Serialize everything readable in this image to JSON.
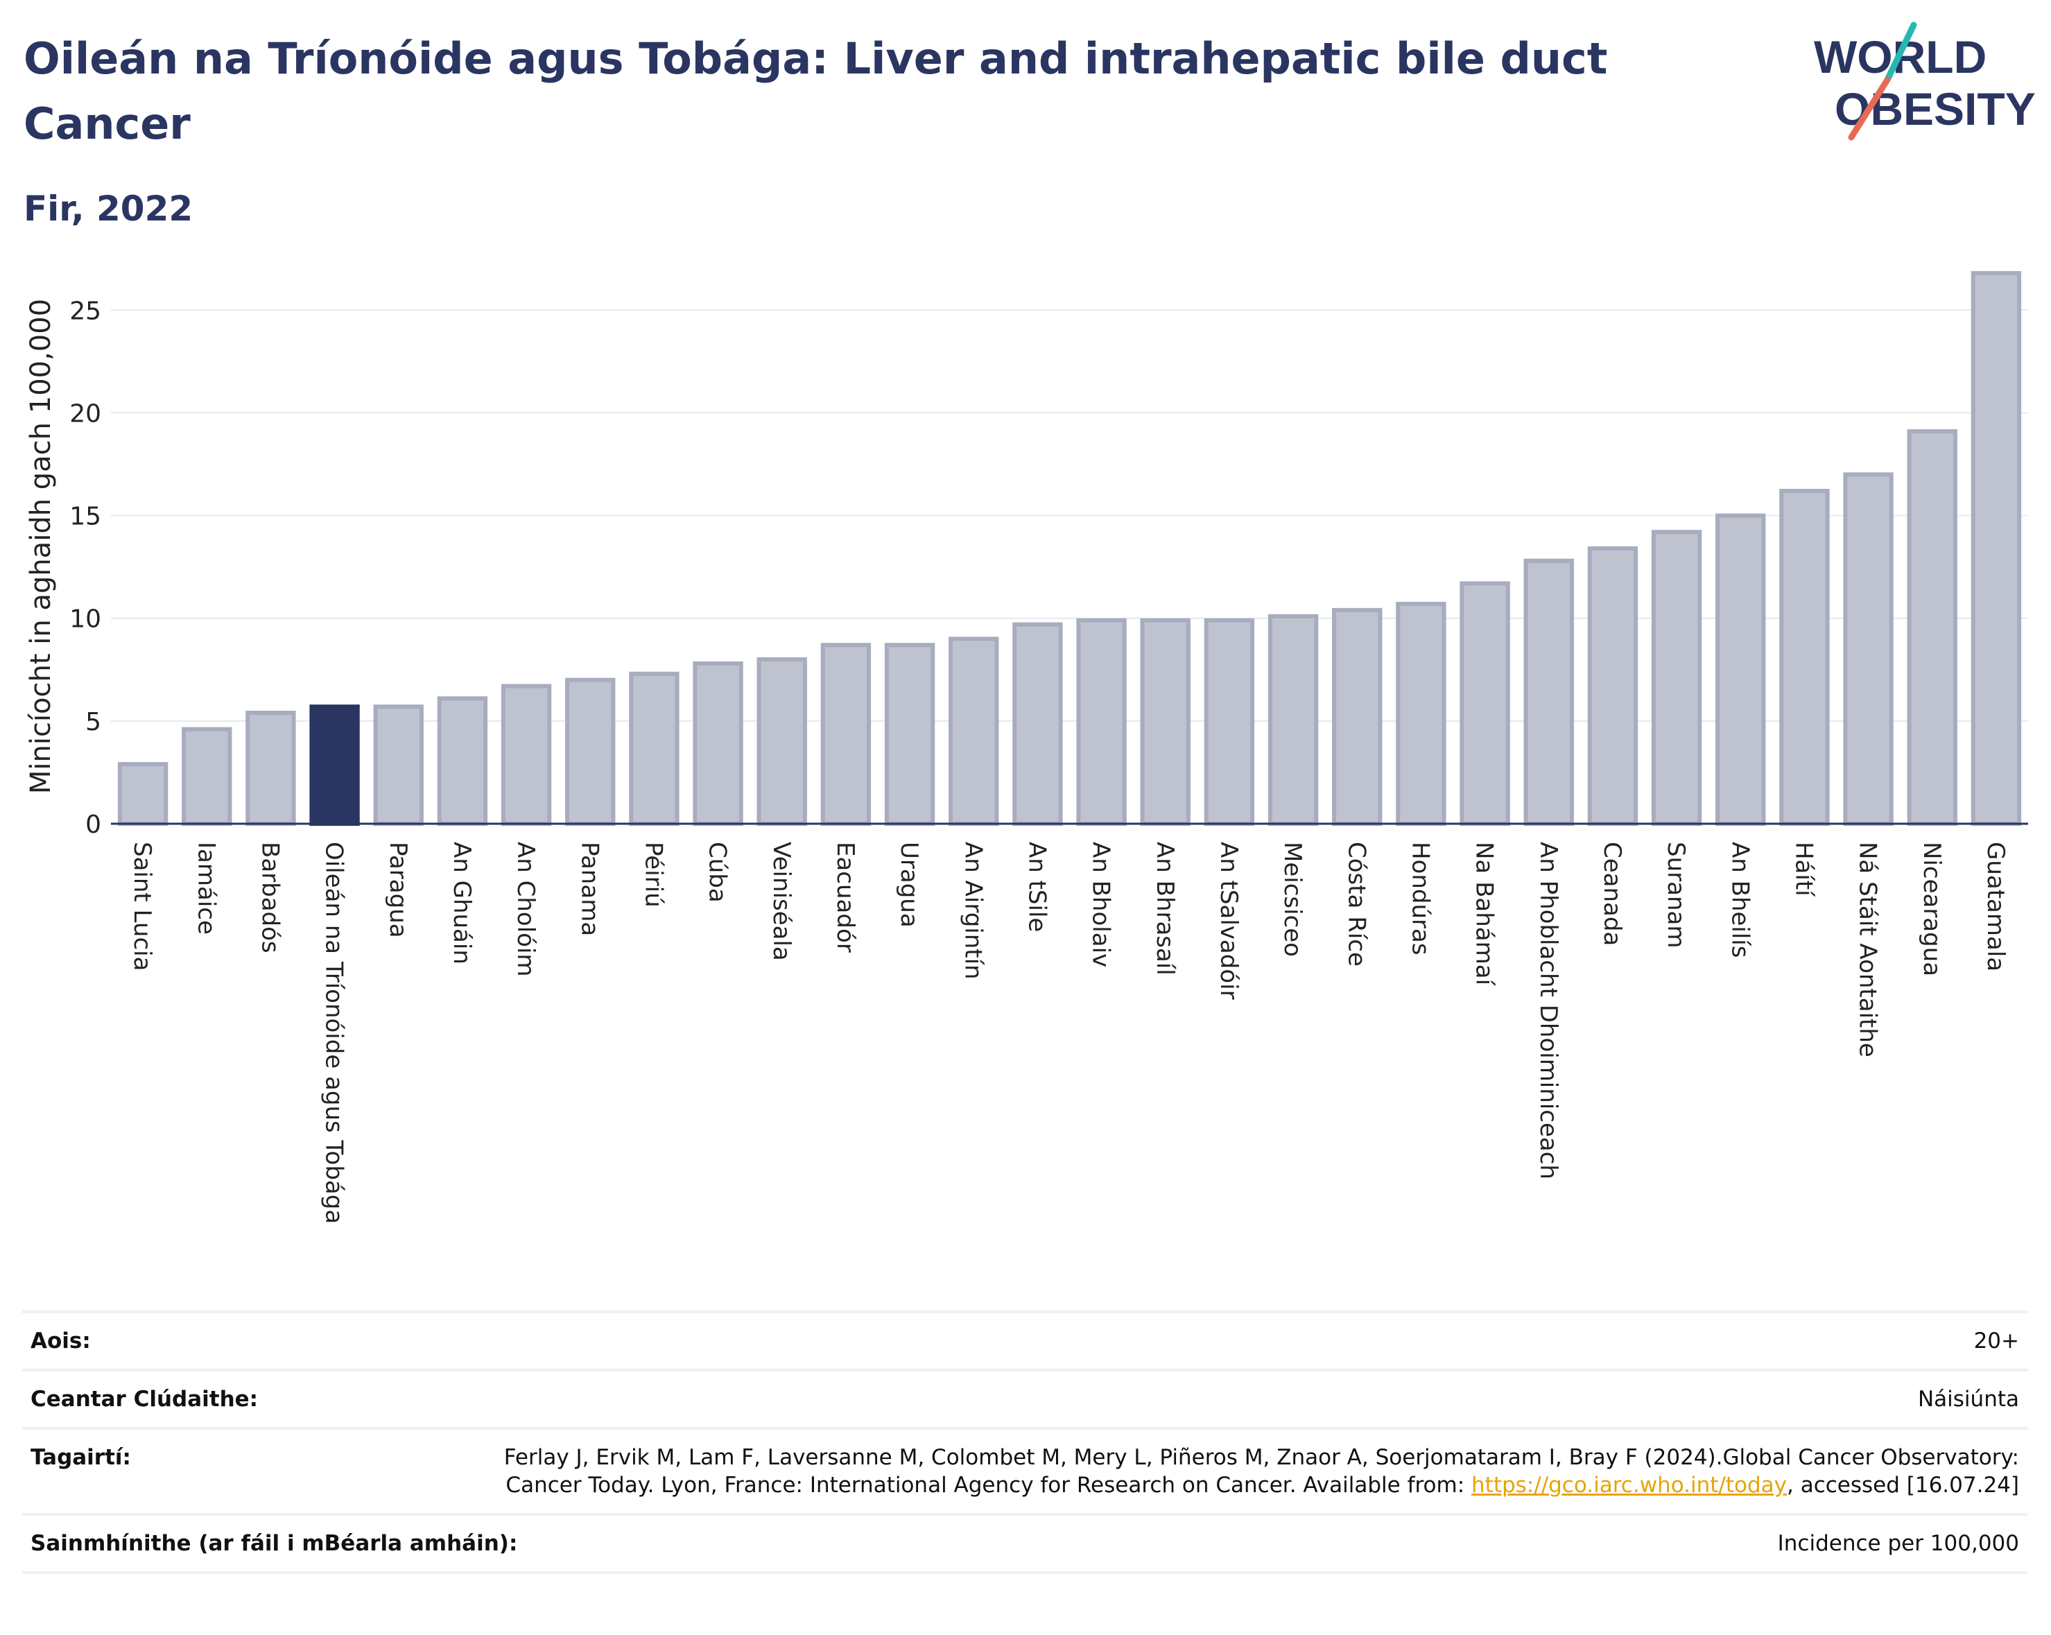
{
  "header": {
    "title": "Oileán na Tríonóide agus Tobága: Liver and intrahepatic bile duct Cancer",
    "subtitle": "Fir, 2022"
  },
  "logo": {
    "line1": "WORLD",
    "line2": "OBESITY"
  },
  "colors": {
    "bar": "#bfc3cf",
    "bar_stroke": "#a7acbe",
    "highlight": "#2a3561",
    "title": "#2a3561",
    "link": "#e8a400"
  },
  "chart_data": {
    "type": "bar",
    "ylabel": "Minicíocht in aghaidh gach 100,000",
    "ylim": [
      0,
      27
    ],
    "yticks": [
      0,
      5,
      10,
      15,
      20,
      25
    ],
    "grid": true,
    "highlight": "Oileán na Tríonóide agus Tobága",
    "categories": [
      "Saint Lucia",
      "Iamáice",
      "Barbadós",
      "Oileán na Tríonóide agus Tobága",
      "Paragua",
      "An Ghuáin",
      "An Cholóim",
      "Panama",
      "Péiriú",
      "Cúba",
      "Veiniséala",
      "Eacuadór",
      "Uragua",
      "An Airgintín",
      "An tSile",
      "An Bholaiv",
      "An Bhrasaíl",
      "An tSalvadóir",
      "Meicsiceo",
      "Cósta Ríce",
      "Hondúras",
      "Na Bahámaí",
      "An Phoblacht Dhoiminiceach",
      "Ceanada",
      "Suranam",
      "An Bheilís",
      "Háítí",
      "Ná Stáit Aontaithe",
      "Nicearagua",
      "Guatamala"
    ],
    "values": [
      2.9,
      4.6,
      5.4,
      5.7,
      5.7,
      6.1,
      6.7,
      7.0,
      7.3,
      7.8,
      8.0,
      8.7,
      8.7,
      9.0,
      9.7,
      9.9,
      9.9,
      9.9,
      10.1,
      10.4,
      10.7,
      11.7,
      12.8,
      13.4,
      14.2,
      15.0,
      16.2,
      17.0,
      19.1,
      26.8
    ]
  },
  "footer": {
    "age_label": "Aois:",
    "age_value": "20+",
    "area_label": "Ceantar Clúdaithe:",
    "area_value": "Náisiúnta",
    "ref_label": "Tagairtí:",
    "ref_text": "Ferlay J, Ervik M, Lam F, Laversanne M, Colombet M, Mery L, Piñeros M, Znaor A, Soerjomataram I, Bray F (2024).Global Cancer Observatory: Cancer Today. Lyon, France: International Agency for Research on Cancer. Available from: ",
    "ref_link": "https://gco.iarc.who.int/today",
    "ref_tail": ", accessed [16.07.24]",
    "def_label": "Sainmhínithe (ar fáil i mBéarla amháin):",
    "def_value": "Incidence per 100,000"
  }
}
